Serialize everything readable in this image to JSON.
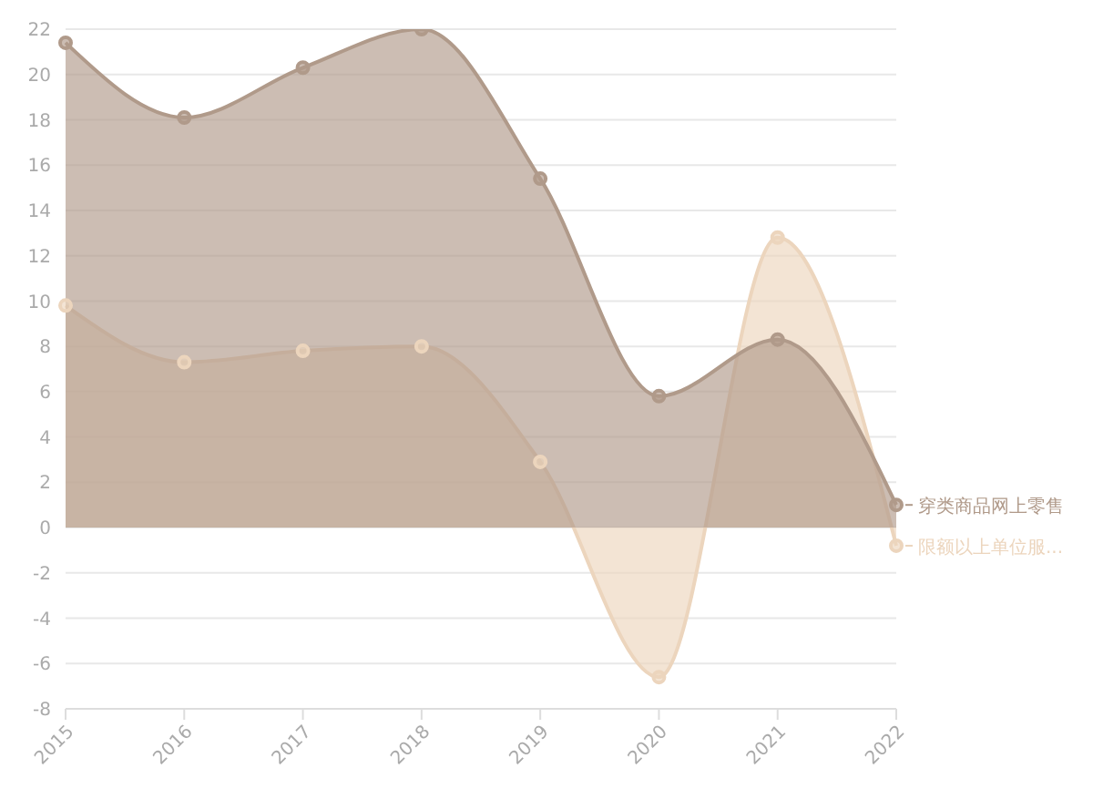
{
  "chart_data": {
    "type": "area",
    "categories": [
      "2015",
      "2016",
      "2017",
      "2018",
      "2019",
      "2020",
      "2021",
      "2022"
    ],
    "series": [
      {
        "name": "限额以上单位服...",
        "color": "#ecd5bd",
        "values": [
          9.8,
          7.3,
          7.8,
          8.0,
          2.9,
          -6.6,
          12.8,
          -0.8
        ]
      },
      {
        "name": "穿类商品网上零售",
        "color": "#b09a8a",
        "values": [
          21.4,
          18.1,
          20.3,
          22.0,
          15.4,
          5.8,
          8.3,
          1.0
        ]
      }
    ],
    "ylim": [
      -8,
      22
    ],
    "yticks": [
      -8,
      -6,
      -4,
      -2,
      0,
      2,
      4,
      6,
      8,
      10,
      12,
      14,
      16,
      18,
      20,
      22
    ],
    "grid": "y",
    "marker": "circle",
    "legend": "right"
  }
}
